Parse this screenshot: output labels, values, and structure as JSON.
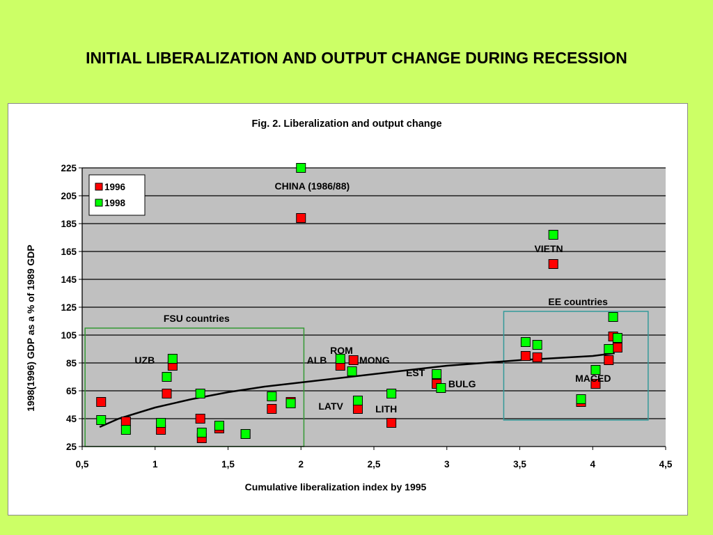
{
  "slide": {
    "title": "INITIAL LIBERALIZATION AND OUTPUT CHANGE DURING RECESSION"
  },
  "chart_data": {
    "type": "scatter",
    "title": "Fig. 2. Liberalization and output change",
    "xlabel": "Cumulative liberalization index by 1995",
    "ylabel": "1998(1996) GDP as a % of 1989 GDP",
    "xlim": [
      0.5,
      4.5
    ],
    "ylim": [
      25,
      225
    ],
    "x_ticks": [
      0.5,
      1,
      1.5,
      2,
      2.5,
      3,
      3.5,
      4,
      4.5
    ],
    "x_tick_labels": [
      "0,5",
      "1",
      "1,5",
      "2",
      "2,5",
      "3",
      "3,5",
      "4",
      "4,5"
    ],
    "y_ticks": [
      25,
      45,
      65,
      85,
      105,
      125,
      145,
      165,
      185,
      205,
      225
    ],
    "y_tick_labels": [
      "25",
      "45",
      "65",
      "85",
      "105",
      "125",
      "145",
      "165",
      "185",
      "205",
      "225"
    ],
    "grid": "horizontal",
    "legend_position": "top-left",
    "plot_background": "#c0c0c0",
    "series": [
      {
        "name": "1996",
        "color": "#ff0000",
        "points": [
          [
            0.63,
            57
          ],
          [
            0.8,
            43
          ],
          [
            1.04,
            37
          ],
          [
            1.08,
            63
          ],
          [
            1.12,
            83
          ],
          [
            1.31,
            45
          ],
          [
            1.32,
            31
          ],
          [
            1.44,
            38
          ],
          [
            1.62,
            34
          ],
          [
            1.8,
            52
          ],
          [
            1.93,
            57
          ],
          [
            2.0,
            189
          ],
          [
            2.27,
            83
          ],
          [
            2.36,
            87
          ],
          [
            2.39,
            52
          ],
          [
            2.62,
            42
          ],
          [
            2.93,
            70
          ],
          [
            3.54,
            90
          ],
          [
            3.62,
            89
          ],
          [
            3.73,
            156
          ],
          [
            3.92,
            57
          ],
          [
            4.02,
            70
          ],
          [
            4.11,
            87
          ],
          [
            4.14,
            104
          ],
          [
            4.17,
            96
          ]
        ]
      },
      {
        "name": "1998",
        "color": "#00ff00",
        "points": [
          [
            0.63,
            44
          ],
          [
            0.8,
            37
          ],
          [
            1.04,
            42
          ],
          [
            1.08,
            75
          ],
          [
            1.12,
            88
          ],
          [
            1.31,
            63
          ],
          [
            1.32,
            35
          ],
          [
            1.44,
            40
          ],
          [
            1.62,
            34
          ],
          [
            1.8,
            61
          ],
          [
            1.93,
            56
          ],
          [
            2.0,
            225
          ],
          [
            2.27,
            88
          ],
          [
            2.35,
            79
          ],
          [
            2.39,
            58
          ],
          [
            2.62,
            63
          ],
          [
            2.93,
            77
          ],
          [
            2.96,
            67
          ],
          [
            3.54,
            100
          ],
          [
            3.62,
            98
          ],
          [
            3.73,
            177
          ],
          [
            3.92,
            59
          ],
          [
            4.02,
            80
          ],
          [
            4.11,
            95
          ],
          [
            4.14,
            118
          ],
          [
            4.17,
            103
          ]
        ]
      }
    ],
    "trendline": {
      "type": "logarithmic",
      "points": [
        [
          0.62,
          39
        ],
        [
          0.75,
          45
        ],
        [
          1.0,
          53
        ],
        [
          1.25,
          59
        ],
        [
          1.5,
          64
        ],
        [
          1.75,
          68
        ],
        [
          2.0,
          71
        ],
        [
          2.5,
          77
        ],
        [
          3.0,
          83
        ],
        [
          3.5,
          87
        ],
        [
          4.0,
          90
        ],
        [
          4.15,
          92
        ]
      ]
    },
    "groups": [
      {
        "label": "FSU countries",
        "x_range": [
          0.52,
          2.02
        ],
        "y_range": [
          25,
          110
        ],
        "color": "#339933"
      },
      {
        "label": "EE countries",
        "x_range": [
          3.39,
          4.38
        ],
        "y_range": [
          44,
          122
        ],
        "color": "#339999"
      }
    ],
    "annotations": [
      {
        "text": "CHINA (1986/88)",
        "x": 1.82,
        "y": 212
      },
      {
        "text": "VIETN",
        "x": 3.6,
        "y": 167
      },
      {
        "text": "UZB",
        "x": 0.86,
        "y": 87
      },
      {
        "text": "ROM",
        "x": 2.2,
        "y": 94
      },
      {
        "text": "ALB",
        "x": 2.04,
        "y": 87
      },
      {
        "text": "MONG",
        "x": 2.4,
        "y": 87
      },
      {
        "text": "EST",
        "x": 2.72,
        "y": 78
      },
      {
        "text": "BULG",
        "x": 3.01,
        "y": 70
      },
      {
        "text": "LATV",
        "x": 2.12,
        "y": 54
      },
      {
        "text": "LITH",
        "x": 2.51,
        "y": 52
      },
      {
        "text": "MACED",
        "x": 3.88,
        "y": 74
      }
    ]
  }
}
